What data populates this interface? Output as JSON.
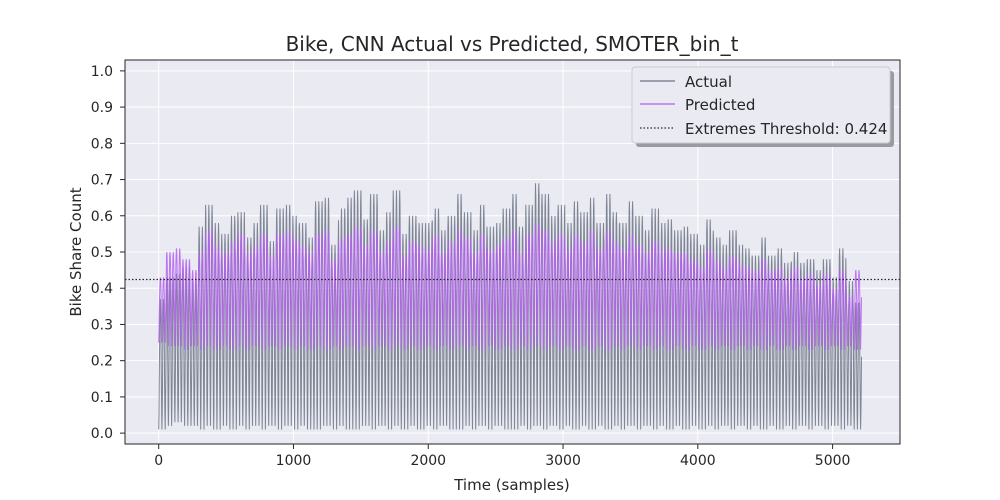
{
  "chart_data": {
    "type": "line",
    "title": "Bike, CNN Actual vs Predicted, SMOTER_bin_t",
    "xlabel": "Time (samples)",
    "ylabel": "Bike Share Count",
    "xlim": [
      -250,
      5500
    ],
    "ylim": [
      -0.03,
      1.03
    ],
    "xticks": [
      0,
      1000,
      2000,
      3000,
      4000,
      5000
    ],
    "xtick_labels": [
      "0",
      "1000",
      "2000",
      "3000",
      "4000",
      "5000"
    ],
    "yticks": [
      0.0,
      0.1,
      0.2,
      0.3,
      0.4,
      0.5,
      0.6,
      0.7,
      0.8,
      0.9,
      1.0
    ],
    "ytick_labels": [
      "0.0",
      "0.1",
      "0.2",
      "0.3",
      "0.4",
      "0.5",
      "0.6",
      "0.7",
      "0.8",
      "0.9",
      "1.0"
    ],
    "grid": true,
    "legend_position": "top-right",
    "n_samples": 5215,
    "series": [
      {
        "name": "Actual",
        "color": "#6b7385",
        "style": "solid",
        "daily_peak": [
          0.37,
          0.43,
          0.44,
          0.46,
          0.42,
          0.57,
          0.63,
          0.58,
          0.55,
          0.6,
          0.61,
          0.54,
          0.58,
          0.63,
          0.53,
          0.62,
          0.63,
          0.6,
          0.58,
          0.54,
          0.64,
          0.65,
          0.52,
          0.62,
          0.65,
          0.67,
          0.59,
          0.66,
          0.56,
          0.61,
          0.67,
          0.55,
          0.6,
          0.58,
          0.58,
          0.62,
          0.56,
          0.6,
          0.66,
          0.61,
          0.56,
          0.63,
          0.57,
          0.58,
          0.62,
          0.66,
          0.57,
          0.63,
          0.69,
          0.66,
          0.6,
          0.63,
          0.58,
          0.64,
          0.61,
          0.65,
          0.58,
          0.66,
          0.61,
          0.58,
          0.64,
          0.6,
          0.56,
          0.62,
          0.58,
          0.59,
          0.56,
          0.57,
          0.55,
          0.52,
          0.59,
          0.54,
          0.52,
          0.56,
          0.52,
          0.51,
          0.49,
          0.54,
          0.49,
          0.51,
          0.47,
          0.5,
          0.47,
          0.48,
          0.45,
          0.48,
          0.43,
          0.51,
          0.42,
          0.36
        ],
        "daily_trough": [
          0.01,
          0.02,
          0.03,
          0.02,
          0.02,
          0.01,
          0.02,
          0.01,
          0.02,
          0.01,
          0.02,
          0.01,
          0.02,
          0.01,
          0.02,
          0.01,
          0.02,
          0.01,
          0.02,
          0.01,
          0.01,
          0.02,
          0.01,
          0.02,
          0.01,
          0.01,
          0.02,
          0.01,
          0.02,
          0.01,
          0.02,
          0.01,
          0.02,
          0.01,
          0.02,
          0.01,
          0.02,
          0.01,
          0.01,
          0.02,
          0.01,
          0.02,
          0.01,
          0.02,
          0.01,
          0.01,
          0.02,
          0.01,
          0.02,
          0.01,
          0.02,
          0.01,
          0.02,
          0.01,
          0.02,
          0.01,
          0.02,
          0.01,
          0.02,
          0.01,
          0.02,
          0.01,
          0.02,
          0.01,
          0.02,
          0.01,
          0.02,
          0.01,
          0.02,
          0.01,
          0.02,
          0.01,
          0.02,
          0.01,
          0.02,
          0.01,
          0.02,
          0.01,
          0.02,
          0.01,
          0.02,
          0.01,
          0.02,
          0.01,
          0.02,
          0.01,
          0.02,
          0.01,
          0.02,
          0.01
        ]
      },
      {
        "name": "Predicted",
        "color": "#b45ff0",
        "style": "solid",
        "daily_peak": [
          0.43,
          0.5,
          0.51,
          0.48,
          0.45,
          0.5,
          0.56,
          0.52,
          0.5,
          0.53,
          0.55,
          0.5,
          0.52,
          0.55,
          0.49,
          0.55,
          0.56,
          0.54,
          0.52,
          0.5,
          0.55,
          0.56,
          0.48,
          0.54,
          0.55,
          0.57,
          0.52,
          0.56,
          0.5,
          0.53,
          0.57,
          0.49,
          0.53,
          0.52,
          0.51,
          0.55,
          0.5,
          0.53,
          0.56,
          0.54,
          0.5,
          0.55,
          0.51,
          0.52,
          0.54,
          0.56,
          0.5,
          0.55,
          0.58,
          0.56,
          0.53,
          0.55,
          0.51,
          0.55,
          0.53,
          0.56,
          0.51,
          0.56,
          0.53,
          0.51,
          0.55,
          0.52,
          0.5,
          0.53,
          0.51,
          0.51,
          0.5,
          0.5,
          0.48,
          0.46,
          0.51,
          0.48,
          0.46,
          0.49,
          0.47,
          0.46,
          0.45,
          0.48,
          0.45,
          0.46,
          0.43,
          0.46,
          0.43,
          0.44,
          0.41,
          0.44,
          0.4,
          0.45,
          0.38,
          0.45
        ],
        "daily_trough": [
          0.25,
          0.24,
          0.24,
          0.23,
          0.24,
          0.23,
          0.24,
          0.23,
          0.24,
          0.23,
          0.24,
          0.23,
          0.24,
          0.23,
          0.24,
          0.23,
          0.24,
          0.23,
          0.24,
          0.23,
          0.24,
          0.23,
          0.24,
          0.23,
          0.24,
          0.23,
          0.24,
          0.23,
          0.24,
          0.23,
          0.24,
          0.23,
          0.24,
          0.23,
          0.24,
          0.23,
          0.24,
          0.23,
          0.24,
          0.23,
          0.24,
          0.23,
          0.24,
          0.23,
          0.24,
          0.23,
          0.24,
          0.23,
          0.24,
          0.23,
          0.24,
          0.23,
          0.24,
          0.23,
          0.24,
          0.23,
          0.24,
          0.23,
          0.24,
          0.23,
          0.24,
          0.23,
          0.24,
          0.23,
          0.24,
          0.23,
          0.24,
          0.23,
          0.24,
          0.23,
          0.24,
          0.23,
          0.24,
          0.23,
          0.24,
          0.23,
          0.24,
          0.23,
          0.24,
          0.23,
          0.24,
          0.23,
          0.24,
          0.23,
          0.24,
          0.23,
          0.24,
          0.23,
          0.24,
          0.23
        ]
      },
      {
        "name": "Extremes Threshold: 0.424",
        "color": "#262626",
        "style": "dotted",
        "value": 0.424
      }
    ]
  }
}
